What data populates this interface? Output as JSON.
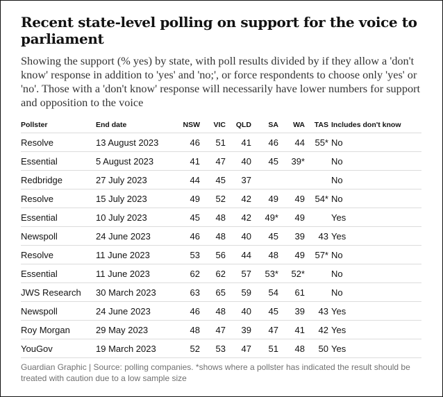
{
  "title": "Recent state-level polling on support for the voice to parliament",
  "subtitle": "Showing the support (% yes) by state, with poll results divided by if they allow a 'don't know' response in addition to 'yes' and 'no;', or force respondents to choose only 'yes' or 'no'. Those with a 'don't know' response will necessarily have lower numbers for support and opposition to the voice",
  "footer": "Guardian Graphic | Source: polling companies. *shows where a pollster has indicated the result should be treated with caution due to a low sample size",
  "chart_data": {
    "type": "table",
    "columns": [
      "Pollster",
      "End date",
      "NSW",
      "VIC",
      "QLD",
      "SA",
      "WA",
      "TAS",
      "Includes don't know"
    ],
    "rows": [
      [
        "Resolve",
        "13 August 2023",
        "46",
        "51",
        "41",
        "46",
        "44",
        "55*",
        "No"
      ],
      [
        "Essential",
        "5 August 2023",
        "41",
        "47",
        "40",
        "45",
        "39*",
        "",
        "No"
      ],
      [
        "Redbridge",
        "27 July 2023",
        "44",
        "45",
        "37",
        "",
        "",
        "",
        "No"
      ],
      [
        "Resolve",
        "15 July 2023",
        "49",
        "52",
        "42",
        "49",
        "49",
        "54*",
        "No"
      ],
      [
        "Essential",
        "10 July 2023",
        "45",
        "48",
        "42",
        "49*",
        "49",
        "",
        "Yes"
      ],
      [
        "Newspoll",
        "24 June 2023",
        "46",
        "48",
        "40",
        "45",
        "39",
        "43",
        "Yes"
      ],
      [
        "Resolve",
        "11 June 2023",
        "53",
        "56",
        "44",
        "48",
        "49",
        "57*",
        "No"
      ],
      [
        "Essential",
        "11 June 2023",
        "62",
        "62",
        "57",
        "53*",
        "52*",
        "",
        "No"
      ],
      [
        "JWS Research",
        "30 March 2023",
        "63",
        "65",
        "59",
        "54",
        "61",
        "",
        "No"
      ],
      [
        "Newspoll",
        "24 June 2023",
        "46",
        "48",
        "40",
        "45",
        "39",
        "43",
        "Yes"
      ],
      [
        "Roy Morgan",
        "29 May 2023",
        "48",
        "47",
        "39",
        "47",
        "41",
        "42",
        "Yes"
      ],
      [
        "YouGov",
        "19 March 2023",
        "52",
        "53",
        "47",
        "51",
        "48",
        "50",
        "Yes"
      ]
    ]
  }
}
